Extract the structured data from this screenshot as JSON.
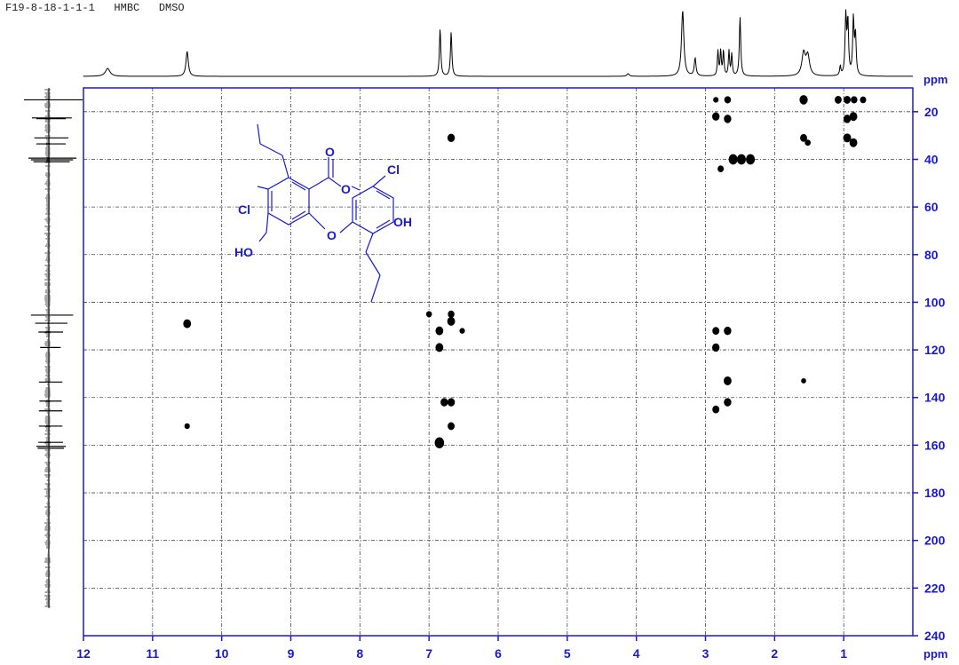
{
  "title": "F19-8-18-1-1-1   HMBC   DMSO",
  "chart_data": {
    "type": "scatter",
    "title": "F19-8-18-1-1-1   HMBC   DMSO",
    "xlabel": "ppm",
    "ylabel": "ppm",
    "xlim": [
      12,
      0
    ],
    "ylim": [
      10,
      240
    ],
    "x_ticks": [
      12,
      11,
      10,
      9,
      8,
      7,
      6,
      5,
      4,
      3,
      2,
      1
    ],
    "y_ticks": [
      20,
      40,
      60,
      80,
      100,
      120,
      140,
      160,
      180,
      200,
      220,
      240
    ],
    "grid": true,
    "colors": {
      "axis": "#1a1acc",
      "grid": "#444444",
      "peak": "#000000",
      "molecule": "#1a1acc"
    },
    "points": [
      {
        "x": 10.5,
        "y": 109,
        "size": 1.0
      },
      {
        "x": 10.5,
        "y": 152,
        "size": 0.4
      },
      {
        "x": 7.0,
        "y": 105,
        "size": 0.5
      },
      {
        "x": 6.85,
        "y": 112,
        "size": 1.0
      },
      {
        "x": 6.85,
        "y": 119,
        "size": 1.0
      },
      {
        "x": 6.85,
        "y": 159,
        "size": 1.4
      },
      {
        "x": 6.78,
        "y": 142,
        "size": 0.9
      },
      {
        "x": 6.68,
        "y": 142,
        "size": 0.9
      },
      {
        "x": 6.68,
        "y": 108,
        "size": 1.0
      },
      {
        "x": 6.68,
        "y": 105,
        "size": 0.7
      },
      {
        "x": 6.68,
        "y": 31,
        "size": 0.9
      },
      {
        "x": 6.68,
        "y": 152,
        "size": 0.8
      },
      {
        "x": 6.52,
        "y": 112,
        "size": 0.4
      },
      {
        "x": 2.85,
        "y": 15,
        "size": 0.4
      },
      {
        "x": 2.68,
        "y": 15,
        "size": 0.7
      },
      {
        "x": 2.85,
        "y": 22,
        "size": 0.9
      },
      {
        "x": 2.68,
        "y": 23,
        "size": 0.9
      },
      {
        "x": 2.6,
        "y": 40,
        "size": 1.3
      },
      {
        "x": 2.48,
        "y": 40,
        "size": 1.3
      },
      {
        "x": 2.35,
        "y": 40,
        "size": 1.3
      },
      {
        "x": 2.78,
        "y": 44,
        "size": 0.6
      },
      {
        "x": 2.85,
        "y": 112,
        "size": 0.8
      },
      {
        "x": 2.68,
        "y": 112,
        "size": 0.9
      },
      {
        "x": 2.85,
        "y": 119,
        "size": 0.9
      },
      {
        "x": 2.68,
        "y": 133,
        "size": 1.0
      },
      {
        "x": 2.68,
        "y": 142,
        "size": 0.9
      },
      {
        "x": 2.85,
        "y": 145,
        "size": 0.8
      },
      {
        "x": 1.58,
        "y": 15,
        "size": 1.1
      },
      {
        "x": 1.58,
        "y": 31,
        "size": 0.8
      },
      {
        "x": 1.52,
        "y": 33,
        "size": 0.5
      },
      {
        "x": 1.58,
        "y": 133,
        "size": 0.3
      },
      {
        "x": 1.08,
        "y": 15,
        "size": 0.8
      },
      {
        "x": 0.95,
        "y": 15,
        "size": 0.8
      },
      {
        "x": 0.85,
        "y": 15,
        "size": 0.7
      },
      {
        "x": 0.72,
        "y": 15,
        "size": 0.6
      },
      {
        "x": 0.95,
        "y": 23,
        "size": 0.9
      },
      {
        "x": 0.86,
        "y": 22,
        "size": 1.0
      },
      {
        "x": 0.95,
        "y": 31,
        "size": 1.0
      },
      {
        "x": 0.86,
        "y": 33,
        "size": 1.0
      }
    ],
    "proton_projection_peaks": [
      {
        "ppm": 11.65,
        "height": 0.12,
        "width": 0.04
      },
      {
        "ppm": 10.5,
        "height": 0.38,
        "width": 0.02
      },
      {
        "ppm": 6.84,
        "height": 0.72,
        "width": 0.012
      },
      {
        "ppm": 6.68,
        "height": 0.67,
        "width": 0.012
      },
      {
        "ppm": 4.12,
        "height": 0.04,
        "width": 0.02
      },
      {
        "ppm": 3.33,
        "height": 1.0,
        "width": 0.02
      },
      {
        "ppm": 3.15,
        "height": 0.27,
        "width": 0.015
      },
      {
        "ppm": 2.82,
        "height": 0.38,
        "width": 0.01
      },
      {
        "ppm": 2.78,
        "height": 0.38,
        "width": 0.01
      },
      {
        "ppm": 2.74,
        "height": 0.38,
        "width": 0.01
      },
      {
        "ppm": 2.66,
        "height": 0.38,
        "width": 0.01
      },
      {
        "ppm": 2.62,
        "height": 0.33,
        "width": 0.01
      },
      {
        "ppm": 2.5,
        "height": 0.9,
        "width": 0.012
      },
      {
        "ppm": 1.58,
        "height": 0.34,
        "width": 0.03
      },
      {
        "ppm": 1.52,
        "height": 0.3,
        "width": 0.03
      },
      {
        "ppm": 1.05,
        "height": 0.14,
        "width": 0.01
      },
      {
        "ppm": 0.97,
        "height": 0.92,
        "width": 0.012
      },
      {
        "ppm": 0.94,
        "height": 0.8,
        "width": 0.012
      },
      {
        "ppm": 0.86,
        "height": 0.85,
        "width": 0.012
      },
      {
        "ppm": 0.83,
        "height": 0.6,
        "width": 0.012
      }
    ],
    "carbon_projection_peaks": [
      {
        "ppm": 15.0,
        "length": 1.0
      },
      {
        "ppm": 22.6,
        "length": 0.68
      },
      {
        "ppm": 22.9,
        "length": 0.5
      },
      {
        "ppm": 31.0,
        "length": 0.58
      },
      {
        "ppm": 33.5,
        "length": 0.5
      },
      {
        "ppm": 39.5,
        "length": 0.82
      },
      {
        "ppm": 40.2,
        "length": 0.72
      },
      {
        "ppm": 41.0,
        "length": 0.62
      },
      {
        "ppm": 105.4,
        "length": 0.72
      },
      {
        "ppm": 108.8,
        "length": 0.55
      },
      {
        "ppm": 112.5,
        "length": 0.42
      },
      {
        "ppm": 119.0,
        "length": 0.35
      },
      {
        "ppm": 133.5,
        "length": 0.4
      },
      {
        "ppm": 141.5,
        "length": 0.38
      },
      {
        "ppm": 145.6,
        "length": 0.4
      },
      {
        "ppm": 152.0,
        "length": 0.4
      },
      {
        "ppm": 158.8,
        "length": 0.42
      },
      {
        "ppm": 160.5,
        "length": 0.5
      },
      {
        "ppm": 161.3,
        "length": 0.45
      }
    ]
  },
  "molecule": {
    "atom_labels": {
      "carbonyl_o": "O",
      "ring_o_ester": "O",
      "ring_o_ether": "O",
      "cl_left": "Cl",
      "cl_right": "Cl",
      "oh_left": "HO",
      "oh_right": "OH"
    }
  }
}
